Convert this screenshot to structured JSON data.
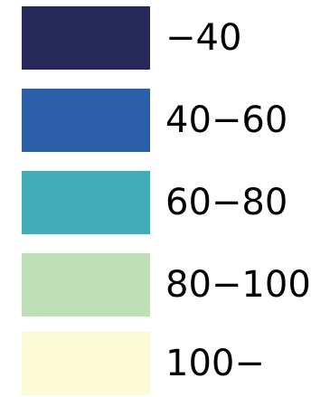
{
  "legend": {
    "items": [
      {
        "label": "−40",
        "color": "#252859"
      },
      {
        "label": "40−60",
        "color": "#2b5ea8"
      },
      {
        "label": "60−80",
        "color": "#41adb9"
      },
      {
        "label": "80−100",
        "color": "#bde0b6"
      },
      {
        "label": "100−",
        "color": "#fbfbd6"
      }
    ]
  }
}
